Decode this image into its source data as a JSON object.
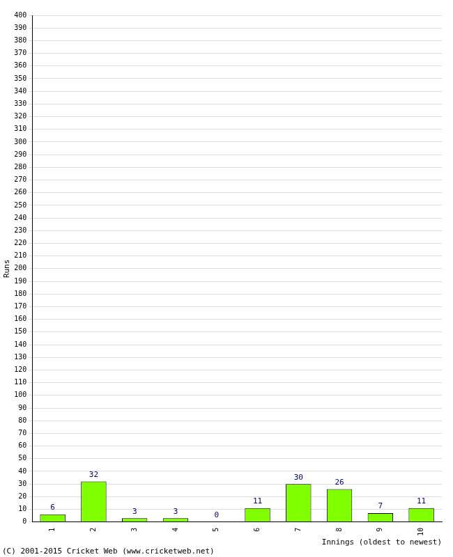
{
  "chart_data": {
    "type": "bar",
    "x_label": "Innings (oldest to newest)",
    "y_label": "Runs",
    "annotations": [
      "(C) 2001-2015 Cricket Web (www.cricketweb.net)"
    ],
    "categories": [
      "1",
      "2",
      "3",
      "4",
      "5",
      "6",
      "7",
      "8",
      "9",
      "10"
    ],
    "values": [
      6,
      32,
      3,
      3,
      0,
      11,
      30,
      26,
      7,
      11
    ],
    "color": "#80ff00",
    "ylim": [
      0,
      400
    ],
    "yticks": [
      0,
      10,
      20,
      30,
      40,
      50,
      60,
      70,
      80,
      90,
      100,
      110,
      120,
      130,
      140,
      150,
      160,
      170,
      180,
      190,
      200,
      210,
      220,
      230,
      240,
      250,
      260,
      270,
      280,
      290,
      300,
      310,
      320,
      330,
      340,
      350,
      360,
      370,
      380,
      390,
      400
    ],
    "grid": true,
    "data_labels": true
  }
}
